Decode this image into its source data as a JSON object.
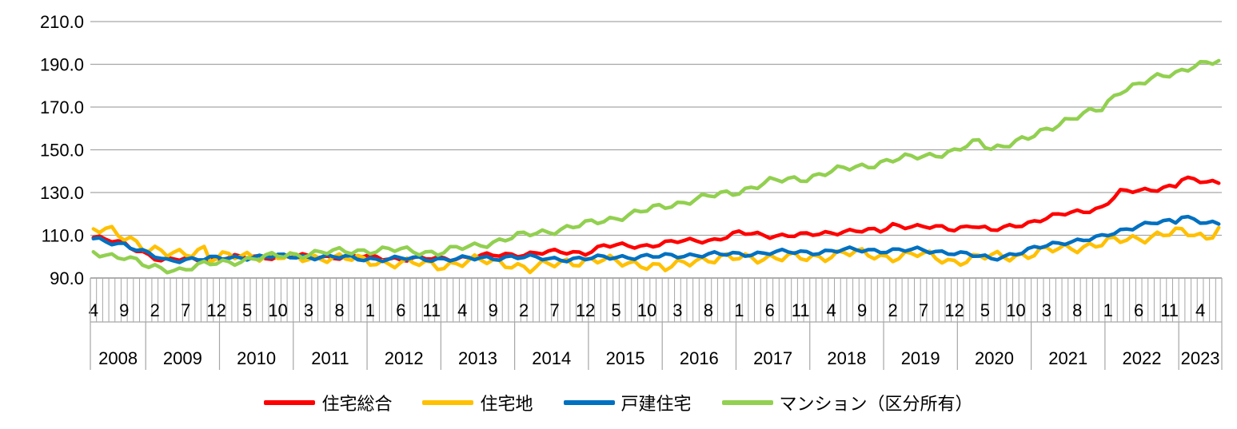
{
  "chart_data": {
    "type": "line",
    "ylim": [
      90,
      210
    ],
    "yticks": [
      "90.0",
      "110.0",
      "130.0",
      "150.0",
      "170.0",
      "190.0",
      "210.0"
    ],
    "x_start": "2008-04",
    "x_end": "2023-07",
    "month_tick_labels": [
      "4",
      "9",
      "2",
      "7",
      "12",
      "5",
      "10",
      "3",
      "8",
      "1",
      "6",
      "11",
      "4",
      "9",
      "2",
      "7",
      "12",
      "5",
      "10",
      "3",
      "8",
      "1",
      "6",
      "11",
      "4",
      "9",
      "2",
      "7",
      "12",
      "5",
      "10",
      "3",
      "8",
      "1",
      "6",
      "11",
      "4"
    ],
    "year_labels": [
      "2008",
      "2009",
      "2010",
      "2011",
      "2012",
      "2013",
      "2014",
      "2015",
      "2016",
      "2017",
      "2018",
      "2019",
      "2020",
      "2021",
      "2022",
      "2023"
    ],
    "grid": "horizontal",
    "legend_position": "bottom",
    "series": [
      {
        "name": "住宅総合",
        "color": "#ff0000",
        "keyframes": [
          [
            "2008-04",
            109
          ],
          [
            "2008-09",
            106
          ],
          [
            "2009-01",
            101
          ],
          [
            "2009-03",
            98
          ],
          [
            "2009-07",
            99
          ],
          [
            "2009-12",
            99
          ],
          [
            "2010-06",
            100
          ],
          [
            "2010-12",
            100
          ],
          [
            "2011-06",
            100
          ],
          [
            "2011-12",
            100
          ],
          [
            "2012-06",
            99
          ],
          [
            "2012-12",
            99
          ],
          [
            "2013-06",
            100
          ],
          [
            "2013-12",
            101
          ],
          [
            "2014-06",
            102
          ],
          [
            "2014-12",
            102
          ],
          [
            "2015-03",
            105
          ],
          [
            "2015-09",
            105
          ],
          [
            "2016-03",
            107
          ],
          [
            "2016-09",
            108
          ],
          [
            "2017-01",
            111
          ],
          [
            "2017-06",
            110
          ],
          [
            "2017-12",
            110
          ],
          [
            "2018-06",
            112
          ],
          [
            "2018-12",
            112
          ],
          [
            "2019-02",
            115
          ],
          [
            "2019-06",
            114
          ],
          [
            "2019-12",
            113
          ],
          [
            "2020-03",
            115
          ],
          [
            "2020-06",
            112
          ],
          [
            "2020-12",
            116
          ],
          [
            "2021-06",
            120
          ],
          [
            "2021-12",
            123
          ],
          [
            "2022-03",
            130
          ],
          [
            "2022-06",
            131
          ],
          [
            "2022-12",
            133
          ],
          [
            "2023-01",
            136
          ],
          [
            "2023-07",
            135
          ]
        ]
      },
      {
        "name": "住宅地",
        "color": "#ffc000",
        "keyframes": [
          [
            "2008-04",
            112
          ],
          [
            "2008-07",
            112
          ],
          [
            "2008-10",
            109
          ],
          [
            "2009-01",
            103
          ],
          [
            "2009-04",
            101
          ],
          [
            "2009-07",
            102
          ],
          [
            "2009-10",
            104
          ],
          [
            "2009-11",
            99
          ],
          [
            "2010-06",
            101
          ],
          [
            "2011-01",
            99
          ],
          [
            "2011-06",
            100
          ],
          [
            "2011-12",
            98
          ],
          [
            "2012-06",
            97
          ],
          [
            "2012-12",
            96
          ],
          [
            "2013-06",
            98
          ],
          [
            "2013-12",
            97
          ],
          [
            "2014-03",
            94
          ],
          [
            "2014-09",
            98
          ],
          [
            "2015-03",
            98
          ],
          [
            "2015-09",
            97
          ],
          [
            "2016-01",
            94
          ],
          [
            "2016-06",
            99
          ],
          [
            "2016-12",
            99
          ],
          [
            "2017-06",
            100
          ],
          [
            "2017-12",
            99
          ],
          [
            "2018-06",
            102
          ],
          [
            "2018-12",
            100
          ],
          [
            "2019-06",
            101
          ],
          [
            "2019-12",
            98
          ],
          [
            "2020-06",
            100
          ],
          [
            "2020-12",
            101
          ],
          [
            "2021-06",
            104
          ],
          [
            "2021-12",
            106
          ],
          [
            "2022-06",
            109
          ],
          [
            "2022-12",
            111
          ],
          [
            "2023-03",
            111
          ],
          [
            "2023-05",
            109
          ],
          [
            "2023-07",
            114
          ]
        ]
      },
      {
        "name": "戸建住宅",
        "color": "#0070c0",
        "keyframes": [
          [
            "2008-04",
            108
          ],
          [
            "2008-09",
            106
          ],
          [
            "2009-01",
            101
          ],
          [
            "2009-04",
            98
          ],
          [
            "2009-07",
            99
          ],
          [
            "2009-12",
            99
          ],
          [
            "2010-06",
            100
          ],
          [
            "2010-12",
            100
          ],
          [
            "2011-06",
            100
          ],
          [
            "2011-12",
            99
          ],
          [
            "2012-06",
            99
          ],
          [
            "2012-12",
            99
          ],
          [
            "2013-06",
            99
          ],
          [
            "2013-12",
            100
          ],
          [
            "2014-06",
            99
          ],
          [
            "2014-12",
            99
          ],
          [
            "2015-06",
            100
          ],
          [
            "2015-12",
            100
          ],
          [
            "2016-06",
            101
          ],
          [
            "2016-12",
            101
          ],
          [
            "2017-06",
            102
          ],
          [
            "2017-12",
            102
          ],
          [
            "2018-06",
            103
          ],
          [
            "2018-12",
            103
          ],
          [
            "2019-06",
            103
          ],
          [
            "2019-12",
            102
          ],
          [
            "2020-06",
            99
          ],
          [
            "2020-12",
            103
          ],
          [
            "2021-06",
            107
          ],
          [
            "2021-12",
            109
          ],
          [
            "2022-06",
            115
          ],
          [
            "2022-09",
            116
          ],
          [
            "2022-12",
            116
          ],
          [
            "2023-01",
            119
          ],
          [
            "2023-04",
            117
          ],
          [
            "2023-07",
            115
          ]
        ]
      },
      {
        "name": "マンション（区分所有）",
        "color": "#92d050",
        "keyframes": [
          [
            "2008-04",
            102
          ],
          [
            "2008-09",
            100
          ],
          [
            "2009-01",
            95
          ],
          [
            "2009-06",
            94
          ],
          [
            "2009-12",
            97
          ],
          [
            "2010-06",
            99
          ],
          [
            "2010-12",
            101
          ],
          [
            "2011-06",
            102
          ],
          [
            "2011-12",
            103
          ],
          [
            "2012-06",
            103
          ],
          [
            "2012-12",
            102
          ],
          [
            "2013-06",
            105
          ],
          [
            "2013-12",
            109
          ],
          [
            "2014-06",
            112
          ],
          [
            "2014-12",
            115
          ],
          [
            "2015-06",
            119
          ],
          [
            "2015-12",
            123
          ],
          [
            "2016-06",
            127
          ],
          [
            "2016-12",
            130
          ],
          [
            "2017-06",
            135
          ],
          [
            "2017-12",
            137
          ],
          [
            "2018-06",
            141
          ],
          [
            "2018-12",
            144
          ],
          [
            "2019-06",
            147
          ],
          [
            "2019-12",
            149
          ],
          [
            "2020-04",
            154
          ],
          [
            "2020-06",
            151
          ],
          [
            "2020-12",
            155
          ],
          [
            "2021-06",
            164
          ],
          [
            "2021-12",
            169
          ],
          [
            "2022-03",
            178
          ],
          [
            "2022-06",
            181
          ],
          [
            "2022-12",
            186
          ],
          [
            "2023-03",
            190
          ],
          [
            "2023-07",
            191
          ]
        ]
      }
    ]
  }
}
